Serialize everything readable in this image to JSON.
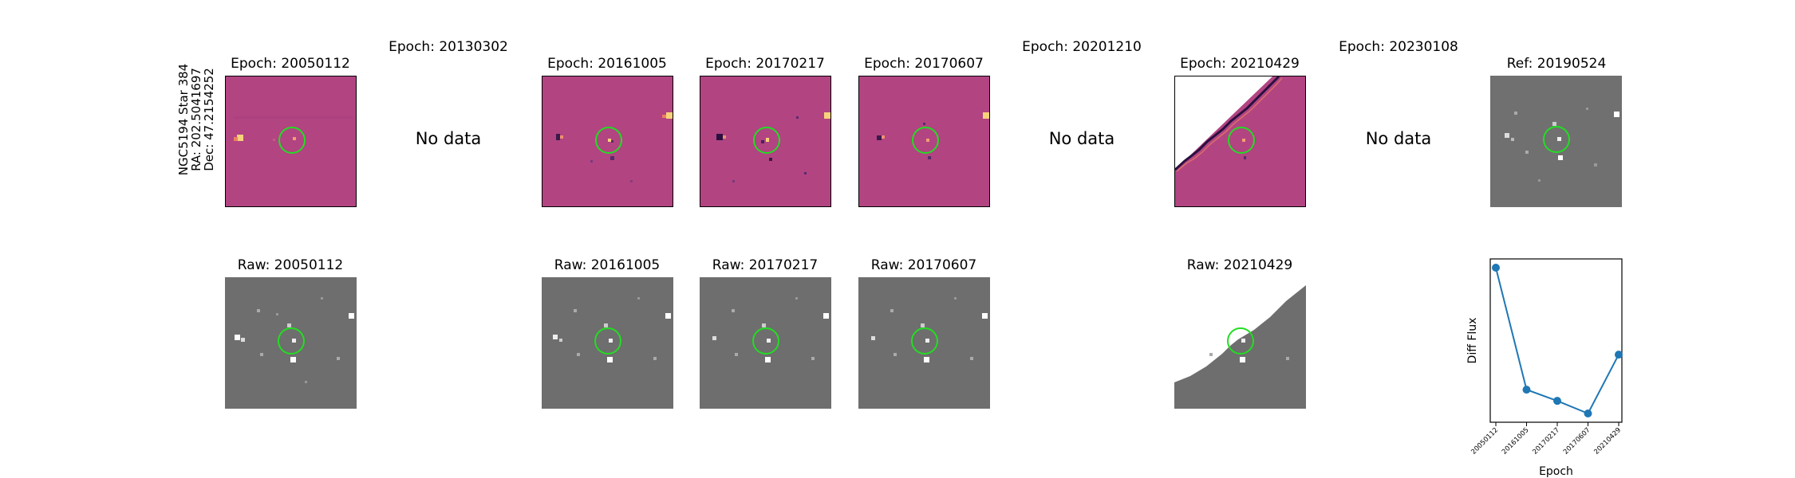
{
  "object": {
    "line1": "NGC5194 Star 384",
    "line2": "RA: 202.5041697",
    "line3": "Dec: 47.2154252"
  },
  "top_row": [
    {
      "title": "Epoch: 20050112",
      "state": "image"
    },
    {
      "title": "Epoch: 20130302",
      "state": "nodata",
      "nodata_text": "No data"
    },
    {
      "title": "Epoch: 20161005",
      "state": "image"
    },
    {
      "title": "Epoch: 20170217",
      "state": "image"
    },
    {
      "title": "Epoch: 20170607",
      "state": "image"
    },
    {
      "title": "Epoch: 20201210",
      "state": "nodata",
      "nodata_text": "No data"
    },
    {
      "title": "Epoch: 20210429",
      "state": "image_partial"
    },
    {
      "title": "Epoch: 20230108",
      "state": "nodata",
      "nodata_text": "No data"
    },
    {
      "title": "Ref: 20190524",
      "state": "reference"
    }
  ],
  "bottom_row": [
    {
      "title": "Raw: 20050112",
      "state": "image"
    },
    {
      "title": "Raw: 20161005",
      "state": "image"
    },
    {
      "title": "Raw: 20170217",
      "state": "image"
    },
    {
      "title": "Raw: 20170607",
      "state": "image"
    },
    {
      "title": "Raw: 20210429",
      "state": "image_partial"
    }
  ],
  "colors": {
    "difference_map": "#b24482",
    "raw_gray": "#6e6e6e",
    "marker_circle": "#22dd22",
    "series": "#1f77b4"
  },
  "chart_data": {
    "type": "line",
    "categories": [
      "20050112",
      "20161005",
      "20170217",
      "20170607",
      "20210429"
    ],
    "values": [
      1.0,
      0.13,
      0.05,
      -0.04,
      0.38
    ],
    "xlabel": "Epoch",
    "ylabel": "Diff Flux",
    "grid": false,
    "legend": "none"
  }
}
